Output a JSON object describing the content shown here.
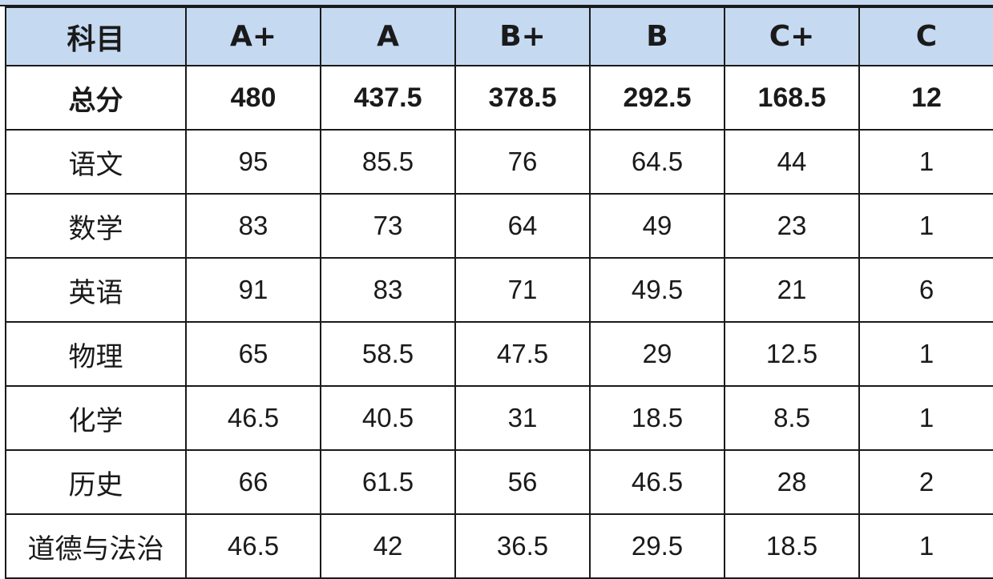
{
  "table": {
    "header": {
      "subject_label": "科目",
      "grades": [
        "A+",
        "A",
        "B+",
        "B",
        "C+",
        "C"
      ]
    },
    "total": {
      "label": "总分",
      "values": [
        "480",
        "437.5",
        "378.5",
        "292.5",
        "168.5",
        "12"
      ]
    },
    "rows": [
      {
        "subject": "语文",
        "values": [
          "95",
          "85.5",
          "76",
          "64.5",
          "44",
          "1"
        ]
      },
      {
        "subject": "数学",
        "values": [
          "83",
          "73",
          "64",
          "49",
          "23",
          "1"
        ]
      },
      {
        "subject": "英语",
        "values": [
          "91",
          "83",
          "71",
          "49.5",
          "21",
          "6"
        ]
      },
      {
        "subject": "物理",
        "values": [
          "65",
          "58.5",
          "47.5",
          "29",
          "12.5",
          "1"
        ]
      },
      {
        "subject": "化学",
        "values": [
          "46.5",
          "40.5",
          "31",
          "18.5",
          "8.5",
          "1"
        ]
      },
      {
        "subject": "历史",
        "values": [
          "66",
          "61.5",
          "56",
          "46.5",
          "28",
          "2"
        ]
      },
      {
        "subject": "道德与法治",
        "values": [
          "46.5",
          "42",
          "36.5",
          "29.5",
          "18.5",
          "1"
        ]
      }
    ],
    "colors": {
      "header_background": "#c5d9f1",
      "border": "#1a1a1a",
      "text": "#1a1a1a"
    }
  }
}
